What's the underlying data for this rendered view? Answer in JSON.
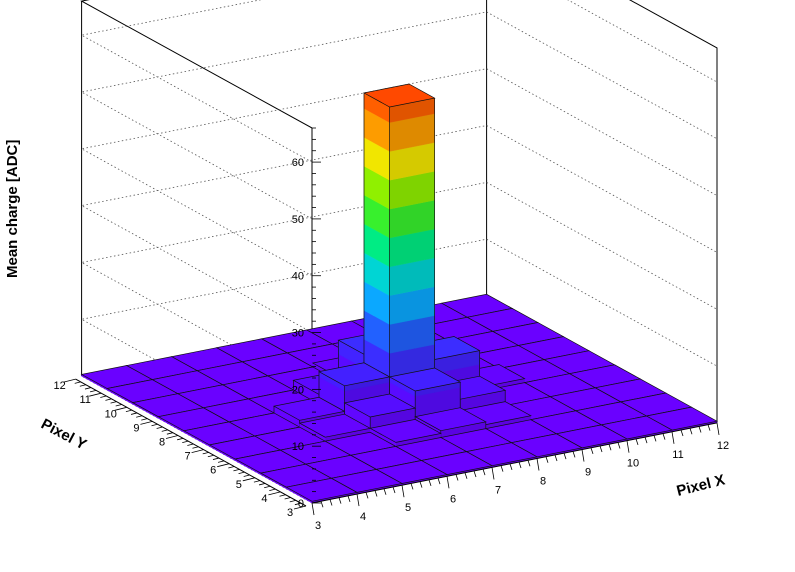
{
  "chart_data": {
    "type": "lego",
    "title": "",
    "xlabel": "Pixel X",
    "ylabel": "Pixel Y",
    "zlabel": "Mean charge [ADC]",
    "xlim": [
      3,
      12
    ],
    "ylim": [
      3,
      12
    ],
    "zlim": [
      0,
      66
    ],
    "x_ticks": [
      3,
      4,
      5,
      6,
      7,
      8,
      9,
      10,
      11,
      12
    ],
    "y_ticks": [
      3,
      4,
      5,
      6,
      7,
      8,
      9,
      10,
      11,
      12
    ],
    "z_ticks": [
      0,
      10,
      20,
      30,
      40,
      50,
      60
    ],
    "z_tick_labels": [
      "0",
      "10",
      "20",
      "30",
      "40",
      "50",
      "60"
    ],
    "grid": true,
    "colormap": "rainbow",
    "cells": [
      {
        "x": 7,
        "y": 7,
        "z": 53.5
      },
      {
        "x": 7,
        "y": 8,
        "z": 7.5
      },
      {
        "x": 8,
        "y": 7,
        "z": 7.5
      },
      {
        "x": 6,
        "y": 7,
        "z": 6
      },
      {
        "x": 7,
        "y": 6,
        "z": 6
      },
      {
        "x": 8,
        "y": 6,
        "z": 3
      },
      {
        "x": 6,
        "y": 6,
        "z": 3
      },
      {
        "x": 6,
        "y": 8,
        "z": 2
      },
      {
        "x": 8,
        "y": 8,
        "z": 2
      },
      {
        "x": 5,
        "y": 7,
        "z": 1.5
      },
      {
        "x": 7,
        "y": 5,
        "z": 1.5
      },
      {
        "x": 9,
        "y": 7,
        "z": 1
      },
      {
        "x": 7,
        "y": 9,
        "z": 1
      },
      {
        "x": 6,
        "y": 5,
        "z": 1
      },
      {
        "x": 8,
        "y": 5,
        "z": 1
      },
      {
        "x": 5,
        "y": 6,
        "z": 1
      }
    ],
    "base_value": 0.3
  }
}
